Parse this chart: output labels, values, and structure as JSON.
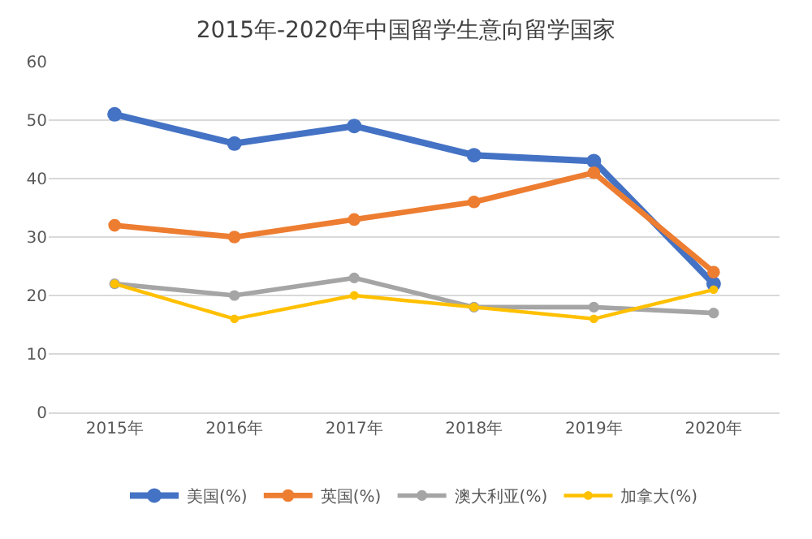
{
  "chart_data": {
    "type": "line",
    "title": "2015年-2020年中国留学生意向留学国家",
    "categories": [
      "2015年",
      "2016年",
      "2017年",
      "2018年",
      "2019年",
      "2020年"
    ],
    "series": [
      {
        "name": "美国(%)",
        "color": "#4472c4",
        "values": [
          51,
          46,
          49,
          44,
          43,
          22
        ]
      },
      {
        "name": "英国(%)",
        "color": "#ed7d31",
        "values": [
          32,
          30,
          33,
          36,
          41,
          24
        ]
      },
      {
        "name": "澳大利亚(%)",
        "color": "#a5a5a5",
        "values": [
          22,
          20,
          23,
          18,
          18,
          17
        ]
      },
      {
        "name": "加拿大(%)",
        "color": "#ffc000",
        "values": [
          22,
          16,
          20,
          18,
          16,
          21
        ]
      }
    ],
    "ylim": [
      0,
      60
    ],
    "yticks": [
      0,
      10,
      20,
      30,
      40,
      50,
      60
    ],
    "grid": "y",
    "legend": "bottom",
    "marker": "circle",
    "line_style": "solid"
  }
}
